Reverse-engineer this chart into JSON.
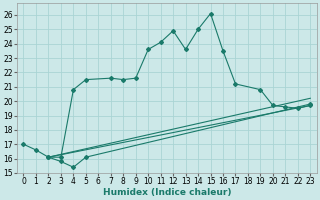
{
  "xlabel": "Humidex (Indice chaleur)",
  "bg_color": "#cce8e8",
  "grid_color": "#aad4d4",
  "line_color": "#1a7a6a",
  "xlim": [
    -0.5,
    23.5
  ],
  "ylim": [
    15,
    26.8
  ],
  "xticks": [
    0,
    1,
    2,
    3,
    4,
    5,
    6,
    7,
    8,
    9,
    10,
    11,
    12,
    13,
    14,
    15,
    16,
    17,
    18,
    19,
    20,
    21,
    22,
    23
  ],
  "yticks": [
    15,
    16,
    17,
    18,
    19,
    20,
    21,
    22,
    23,
    24,
    25,
    26
  ],
  "series1_x": [
    0,
    1,
    2,
    3,
    4,
    5,
    7,
    8,
    9,
    10,
    11,
    12,
    13,
    14,
    15,
    16,
    17,
    19,
    20,
    21,
    22,
    23
  ],
  "series1_y": [
    17.0,
    16.6,
    16.1,
    16.1,
    20.8,
    21.5,
    21.6,
    21.5,
    21.6,
    23.6,
    24.1,
    24.9,
    23.6,
    25.0,
    26.1,
    23.5,
    21.2,
    20.8,
    19.7,
    19.6,
    19.5,
    19.7
  ],
  "series2_x": [
    2,
    3,
    4,
    5,
    23
  ],
  "series2_y": [
    16.1,
    15.8,
    15.4,
    16.1,
    19.8
  ],
  "series3_x": [
    2,
    23
  ],
  "series3_y": [
    16.1,
    19.7
  ],
  "series4_x": [
    2,
    23
  ],
  "series4_y": [
    16.1,
    20.2
  ],
  "xlabel_fontsize": 6.5,
  "tick_fontsize": 5.5
}
